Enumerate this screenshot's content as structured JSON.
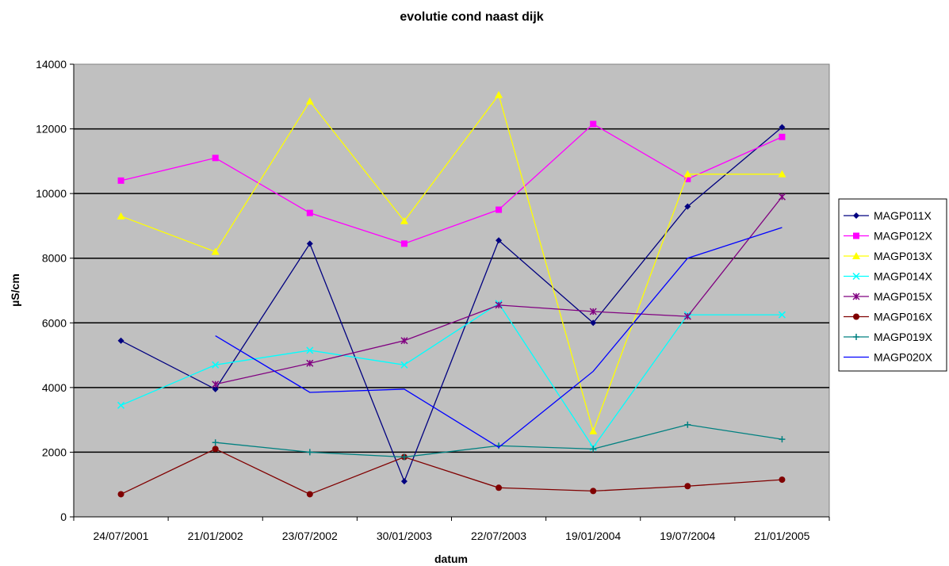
{
  "chart_data": {
    "type": "line",
    "title": "evolutie cond naast dijk",
    "xlabel": "datum",
    "ylabel": "µS/cm",
    "categories": [
      "24/07/2001",
      "21/01/2002",
      "23/07/2002",
      "30/01/2003",
      "22/07/2003",
      "19/01/2004",
      "19/07/2004",
      "21/01/2005"
    ],
    "ylim": [
      0,
      14000
    ],
    "yticks": [
      0,
      2000,
      4000,
      6000,
      8000,
      10000,
      12000,
      14000
    ],
    "ytick_labels": [
      "0",
      "2000",
      "4000",
      "6000",
      "8000",
      "10000",
      "12000",
      "14000"
    ],
    "grid": "horizontal major gridlines",
    "plot_background": "#c0c0c0",
    "legend": "right",
    "series": [
      {
        "name": "MAGP011X",
        "color": "#000080",
        "marker": "diamond",
        "values": [
          5450,
          3950,
          8450,
          1100,
          8550,
          6000,
          9600,
          12050
        ]
      },
      {
        "name": "MAGP012X",
        "color": "#ff00ff",
        "marker": "square",
        "values": [
          10400,
          11100,
          9400,
          8450,
          9500,
          12150,
          10450,
          11750
        ]
      },
      {
        "name": "MAGP013X",
        "color": "#ffff00",
        "marker": "triangle",
        "values": [
          9300,
          8200,
          12850,
          9150,
          13050,
          2650,
          10600,
          10600
        ]
      },
      {
        "name": "MAGP014X",
        "color": "#00ffff",
        "marker": "x",
        "values": [
          3450,
          4700,
          5150,
          4700,
          6600,
          2150,
          6250,
          6250
        ]
      },
      {
        "name": "MAGP015X",
        "color": "#800080",
        "marker": "star",
        "values": [
          null,
          4100,
          4750,
          5450,
          6550,
          6350,
          6200,
          9900
        ]
      },
      {
        "name": "MAGP016X",
        "color": "#800000",
        "marker": "circle",
        "values": [
          700,
          2100,
          700,
          1850,
          900,
          800,
          950,
          1150
        ]
      },
      {
        "name": "MAGP019X",
        "color": "#008080",
        "marker": "plus",
        "values": [
          null,
          2300,
          2000,
          1850,
          2200,
          2100,
          2850,
          2400
        ]
      },
      {
        "name": "MAGP020X",
        "color": "#0000ff",
        "marker": "none",
        "values": [
          null,
          5600,
          3850,
          3950,
          2150,
          4500,
          8000,
          8950
        ]
      }
    ]
  }
}
